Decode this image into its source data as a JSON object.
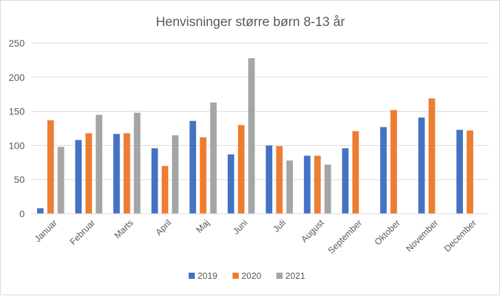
{
  "chart_data": {
    "type": "bar",
    "title": "Henvisninger større børn 8-13 år",
    "xlabel": "",
    "ylabel": "",
    "ylim": [
      0,
      250
    ],
    "yticks": [
      0,
      50,
      100,
      150,
      200,
      250
    ],
    "grid": true,
    "legend_position": "bottom",
    "categories": [
      "Januar",
      "Februar",
      "Marts",
      "April",
      "Maj",
      "Juni",
      "Juli",
      "August",
      "September",
      "Oktober",
      "November",
      "December"
    ],
    "series": [
      {
        "name": "2019",
        "color": "#4472c4",
        "values": [
          8,
          108,
          117,
          96,
          136,
          87,
          100,
          85,
          96,
          127,
          141,
          123
        ]
      },
      {
        "name": "2020",
        "color": "#ed7d31",
        "values": [
          137,
          118,
          118,
          70,
          112,
          130,
          99,
          85,
          121,
          152,
          169,
          122
        ]
      },
      {
        "name": "2021",
        "color": "#a5a5a5",
        "values": [
          98,
          145,
          148,
          115,
          163,
          228,
          78,
          72,
          null,
          null,
          null,
          null
        ]
      }
    ]
  }
}
